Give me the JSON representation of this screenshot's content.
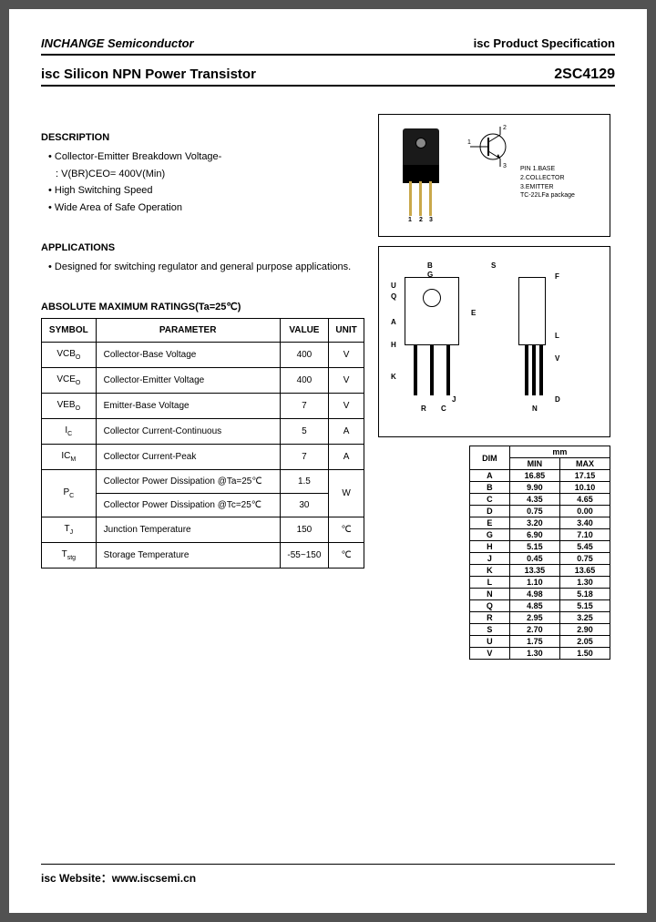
{
  "header": {
    "left": "INCHANGE Semiconductor",
    "right_prefix": "isc",
    "right_suffix": " Product Specification"
  },
  "title": {
    "left": "isc Silicon NPN Power Transistor",
    "right": "2SC4129"
  },
  "description": {
    "heading": "DESCRIPTION",
    "items": [
      "Collector-Emitter Breakdown Voltage-",
      "High Switching Speed",
      "Wide Area of Safe Operation"
    ],
    "sub": ": V(BR)CEO= 400V(Min)"
  },
  "applications": {
    "heading": "APPLICATIONS",
    "text": "Designed for switching regulator and general purpose applications."
  },
  "ratings": {
    "heading": "ABSOLUTE MAXIMUM RATINGS(Ta=25℃)",
    "columns": [
      "SYMBOL",
      "PARAMETER",
      "VALUE",
      "UNIT"
    ],
    "rows": [
      {
        "sym": "VCBO",
        "param": "Collector-Base Voltage",
        "val": "400",
        "unit": "V"
      },
      {
        "sym": "VCEO",
        "param": "Collector-Emitter Voltage",
        "val": "400",
        "unit": "V"
      },
      {
        "sym": "VEBO",
        "param": "Emitter-Base Voltage",
        "val": "7",
        "unit": "V"
      },
      {
        "sym": "IC",
        "param": "Collector Current-Continuous",
        "val": "5",
        "unit": "A"
      },
      {
        "sym": "ICM",
        "param": "Collector Current-Peak",
        "val": "7",
        "unit": "A"
      }
    ],
    "pc": {
      "sym": "PC",
      "r1": {
        "param": "Collector Power Dissipation @Ta=25℃",
        "val": "1.5"
      },
      "r2": {
        "param": "Collector Power Dissipation @Tc=25℃",
        "val": "30"
      },
      "unit": "W"
    },
    "tj": {
      "sym": "TJ",
      "param": "Junction Temperature",
      "val": "150",
      "unit": "℃"
    },
    "tstg": {
      "sym": "Tstg",
      "param": "Storage Temperature",
      "val": "-55~150",
      "unit": "℃"
    }
  },
  "package": {
    "pins": [
      "1",
      "2",
      "3"
    ],
    "legend": [
      "PIN 1.BASE",
      "2.COLLECTOR",
      "3.EMITTER",
      "TC-22LFa package"
    ],
    "sym_labels": {
      "b": "1",
      "c": "2",
      "e": "3"
    }
  },
  "outline_labels": [
    "A",
    "B",
    "C",
    "D",
    "E",
    "F",
    "G",
    "H",
    "J",
    "K",
    "L",
    "N",
    "Q",
    "R",
    "S",
    "U",
    "V"
  ],
  "dimensions": {
    "heading_unit": "mm",
    "cols": [
      "DIM",
      "MIN",
      "MAX"
    ],
    "rows": [
      [
        "A",
        "16.85",
        "17.15"
      ],
      [
        "B",
        "9.90",
        "10.10"
      ],
      [
        "C",
        "4.35",
        "4.65"
      ],
      [
        "D",
        "0.75",
        "0.00"
      ],
      [
        "E",
        "3.20",
        "3.40"
      ],
      [
        "G",
        "6.90",
        "7.10"
      ],
      [
        "H",
        "5.15",
        "5.45"
      ],
      [
        "J",
        "0.45",
        "0.75"
      ],
      [
        "K",
        "13.35",
        "13.65"
      ],
      [
        "L",
        "1.10",
        "1.30"
      ],
      [
        "N",
        "4.98",
        "5.18"
      ],
      [
        "Q",
        "4.85",
        "5.15"
      ],
      [
        "R",
        "2.95",
        "3.25"
      ],
      [
        "S",
        "2.70",
        "2.90"
      ],
      [
        "U",
        "1.75",
        "2.05"
      ],
      [
        "V",
        "1.30",
        "1.50"
      ]
    ]
  },
  "footer": {
    "text": "isc Website：www.iscsemi.cn"
  }
}
